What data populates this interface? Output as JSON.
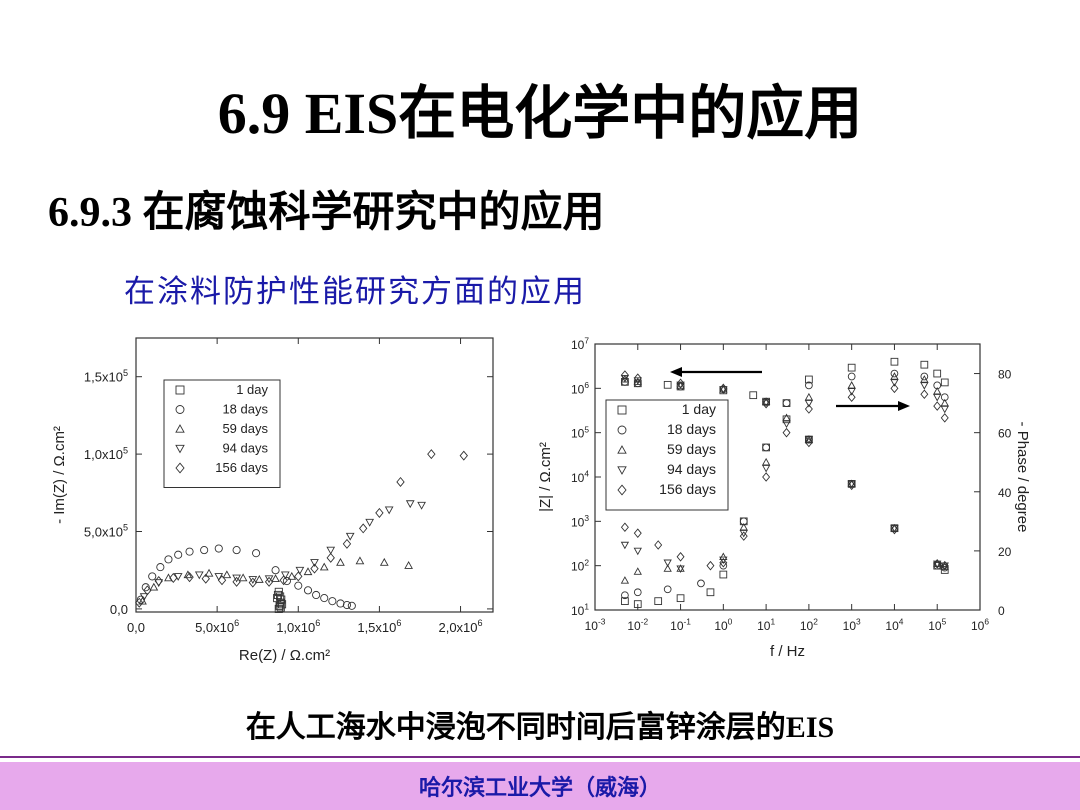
{
  "slide": {
    "title": "6.9   EIS在电化学中的应用",
    "subtitle": "6.9.3 在腐蚀科学研究中的应用",
    "section": "在涂料防护性能研究方面的应用",
    "caption": "在人工海水中浸泡不同时间后富锌涂层的EIS",
    "footer": "哈尔滨工业大学（威海）"
  },
  "chart_data": [
    {
      "type": "scatter",
      "title": "",
      "xlabel": "Re(Z)  /  Ω.cm²",
      "ylabel": "- Im(Z)  /  Ω.cm²",
      "xlim": [
        0,
        2200000
      ],
      "ylim": [
        -20000,
        1750000
      ],
      "x_ticks": [
        0,
        500000,
        1000000,
        1500000,
        2000000
      ],
      "x_tick_labels": [
        "0,0",
        "5,0x10",
        "1,0x10",
        "1,5x10",
        "2,0x10"
      ],
      "y_ticks": [
        0,
        500000,
        1000000,
        1500000
      ],
      "y_tick_labels": [
        "0,0",
        "5,0x10",
        "1,0x10",
        "1,5x10"
      ],
      "tick_exponent": "6",
      "y_tick_exponent": "5",
      "legend_position": "top-left",
      "series": [
        {
          "name": "1 day",
          "marker": "square",
          "points": [
            [
              880000,
              0
            ],
            [
              885000,
              20000
            ],
            [
              890000,
              40000
            ],
            [
              895000,
              60000
            ],
            [
              888000,
              80000
            ],
            [
              880000,
              110000
            ],
            [
              875000,
              90000
            ],
            [
              900000,
              30000
            ],
            [
              892000,
              10000
            ],
            [
              870000,
              70000
            ]
          ]
        },
        {
          "name": "18 days",
          "marker": "circle",
          "points": [
            [
              30000,
              60000
            ],
            [
              60000,
              140000
            ],
            [
              100000,
              210000
            ],
            [
              150000,
              270000
            ],
            [
              200000,
              320000
            ],
            [
              260000,
              350000
            ],
            [
              330000,
              370000
            ],
            [
              420000,
              380000
            ],
            [
              510000,
              390000
            ],
            [
              620000,
              380000
            ],
            [
              740000,
              360000
            ],
            [
              860000,
              250000
            ],
            [
              930000,
              180000
            ],
            [
              1000000,
              150000
            ],
            [
              1060000,
              120000
            ],
            [
              1110000,
              90000
            ],
            [
              1160000,
              70000
            ],
            [
              1210000,
              50000
            ],
            [
              1260000,
              35000
            ],
            [
              1300000,
              25000
            ],
            [
              1330000,
              20000
            ]
          ]
        },
        {
          "name": "59 days",
          "marker": "triangle-up",
          "points": [
            [
              40000,
              50000
            ],
            [
              110000,
              140000
            ],
            [
              200000,
              200000
            ],
            [
              320000,
              220000
            ],
            [
              450000,
              230000
            ],
            [
              560000,
              220000
            ],
            [
              660000,
              200000
            ],
            [
              760000,
              190000
            ],
            [
              860000,
              195000
            ],
            [
              960000,
              210000
            ],
            [
              1060000,
              240000
            ],
            [
              1160000,
              270000
            ],
            [
              1260000,
              300000
            ],
            [
              1380000,
              310000
            ],
            [
              1530000,
              300000
            ],
            [
              1680000,
              280000
            ]
          ]
        },
        {
          "name": "94 days",
          "marker": "triangle-down",
          "points": [
            [
              50000,
              80000
            ],
            [
              140000,
              170000
            ],
            [
              260000,
              210000
            ],
            [
              390000,
              220000
            ],
            [
              510000,
              210000
            ],
            [
              620000,
              200000
            ],
            [
              720000,
              190000
            ],
            [
              820000,
              195000
            ],
            [
              920000,
              220000
            ],
            [
              1010000,
              250000
            ],
            [
              1100000,
              300000
            ],
            [
              1200000,
              380000
            ],
            [
              1320000,
              470000
            ],
            [
              1440000,
              560000
            ],
            [
              1560000,
              640000
            ],
            [
              1690000,
              680000
            ],
            [
              1760000,
              670000
            ]
          ]
        },
        {
          "name": "156 days",
          "marker": "diamond",
          "points": [
            [
              20000,
              40000
            ],
            [
              70000,
              120000
            ],
            [
              140000,
              180000
            ],
            [
              230000,
              200000
            ],
            [
              330000,
              205000
            ],
            [
              430000,
              195000
            ],
            [
              530000,
              185000
            ],
            [
              620000,
              175000
            ],
            [
              720000,
              170000
            ],
            [
              820000,
              175000
            ],
            [
              910000,
              185000
            ],
            [
              1000000,
              210000
            ],
            [
              1100000,
              260000
            ],
            [
              1200000,
              330000
            ],
            [
              1300000,
              420000
            ],
            [
              1400000,
              520000
            ],
            [
              1500000,
              620000
            ],
            [
              1630000,
              820000
            ],
            [
              1820000,
              1000000
            ],
            [
              2020000,
              990000
            ]
          ]
        }
      ]
    },
    {
      "type": "scatter",
      "title": "",
      "xlabel": "f / Hz",
      "ylabel": "|Z|  /  Ω.cm²",
      "y2label": "- Phase / degree",
      "x_scale": "log",
      "y_scale": "log",
      "xlim": [
        0.001,
        1000000
      ],
      "ylim": [
        10,
        10000000
      ],
      "y2lim": [
        0,
        90
      ],
      "x_tick_labels": [
        "10",
        "10",
        "10",
        "10",
        "10",
        "10",
        "10",
        "10",
        "10",
        "10"
      ],
      "x_tick_exponents": [
        "-3",
        "-2",
        "-1",
        "0",
        "1",
        "2",
        "3",
        "4",
        "5",
        "6"
      ],
      "y_tick_labels": [
        "10",
        "10",
        "10",
        "10",
        "10",
        "10",
        "10"
      ],
      "y_tick_exponents": [
        "1",
        "2",
        "3",
        "4",
        "5",
        "6",
        "7"
      ],
      "y2_ticks": [
        0,
        20,
        40,
        60,
        80
      ],
      "legend_position": "middle-left",
      "arrows": [
        "left arrow points to |Z| curves",
        "right arrow points to phase curves"
      ],
      "series": [
        {
          "name": "1 day",
          "marker": "square",
          "modulus": [
            [
              0.005,
              1400000
            ],
            [
              0.01,
              1300000
            ],
            [
              0.05,
              1200000
            ],
            [
              0.1,
              1100000
            ],
            [
              1,
              900000
            ],
            [
              5,
              700000
            ],
            [
              10,
              500000
            ],
            [
              30,
              200000
            ],
            [
              100,
              70000
            ],
            [
              1000,
              7000
            ],
            [
              10000,
              700
            ],
            [
              100000,
              100
            ],
            [
              150000,
              80
            ]
          ],
          "phase": [
            [
              0.005,
              3
            ],
            [
              0.01,
              2
            ],
            [
              0.03,
              3
            ],
            [
              0.1,
              4
            ],
            [
              0.5,
              6
            ],
            [
              1,
              12
            ],
            [
              3,
              30
            ],
            [
              10,
              55
            ],
            [
              30,
              70
            ],
            [
              100,
              78
            ],
            [
              1000,
              82
            ],
            [
              10000,
              84
            ],
            [
              50000,
              83
            ],
            [
              100000,
              80
            ],
            [
              150000,
              77
            ]
          ]
        },
        {
          "name": "18 days",
          "marker": "circle",
          "modulus": [
            [
              0.005,
              1400000
            ],
            [
              0.01,
              1300000
            ],
            [
              0.1,
              1100000
            ],
            [
              1,
              950000
            ],
            [
              10,
              500000
            ],
            [
              100,
              70000
            ],
            [
              1000,
              7000
            ],
            [
              10000,
              700
            ],
            [
              100000,
              100
            ],
            [
              150000,
              90
            ]
          ],
          "phase": [
            [
              0.005,
              5
            ],
            [
              0.01,
              6
            ],
            [
              0.05,
              7
            ],
            [
              0.3,
              9
            ],
            [
              1,
              15
            ],
            [
              3,
              30
            ],
            [
              10,
              55
            ],
            [
              30,
              70
            ],
            [
              100,
              76
            ],
            [
              1000,
              79
            ],
            [
              10000,
              80
            ],
            [
              50000,
              79
            ],
            [
              100000,
              76
            ],
            [
              150000,
              72
            ]
          ]
        },
        {
          "name": "59 days",
          "marker": "triangle-up",
          "modulus": [
            [
              0.005,
              1600000
            ],
            [
              0.01,
              1400000
            ],
            [
              0.1,
              1150000
            ],
            [
              1,
              950000
            ],
            [
              10,
              500000
            ],
            [
              100,
              70000
            ],
            [
              1000,
              7000
            ],
            [
              10000,
              700
            ],
            [
              100000,
              110
            ],
            [
              150000,
              95
            ]
          ],
          "phase": [
            [
              0.005,
              10
            ],
            [
              0.01,
              13
            ],
            [
              0.05,
              14
            ],
            [
              0.1,
              14
            ],
            [
              1,
              18
            ],
            [
              3,
              28
            ],
            [
              10,
              50
            ],
            [
              30,
              65
            ],
            [
              100,
              72
            ],
            [
              1000,
              76
            ],
            [
              10000,
              79
            ],
            [
              50000,
              78
            ],
            [
              100000,
              74
            ],
            [
              150000,
              70
            ]
          ]
        },
        {
          "name": "94 days",
          "marker": "triangle-down",
          "modulus": [
            [
              0.005,
              1700000
            ],
            [
              0.01,
              1500000
            ],
            [
              0.1,
              1200000
            ],
            [
              1,
              950000
            ],
            [
              10,
              480000
            ],
            [
              100,
              70000
            ],
            [
              1000,
              7000
            ],
            [
              10000,
              700
            ],
            [
              100000,
              110
            ],
            [
              150000,
              100
            ]
          ],
          "phase": [
            [
              0.005,
              22
            ],
            [
              0.01,
              20
            ],
            [
              0.05,
              16
            ],
            [
              0.1,
              14
            ],
            [
              1,
              17
            ],
            [
              3,
              26
            ],
            [
              10,
              48
            ],
            [
              30,
              63
            ],
            [
              100,
              70
            ],
            [
              1000,
              74
            ],
            [
              10000,
              77
            ],
            [
              50000,
              76
            ],
            [
              100000,
              72
            ],
            [
              150000,
              68
            ]
          ]
        },
        {
          "name": "156 days",
          "marker": "diamond",
          "modulus": [
            [
              0.005,
              2000000
            ],
            [
              0.01,
              1700000
            ],
            [
              0.1,
              1300000
            ],
            [
              1,
              1000000
            ],
            [
              10,
              450000
            ],
            [
              100,
              60000
            ],
            [
              1000,
              6500
            ],
            [
              10000,
              650
            ],
            [
              100000,
              110
            ],
            [
              150000,
              100
            ]
          ],
          "phase": [
            [
              0.005,
              28
            ],
            [
              0.01,
              26
            ],
            [
              0.03,
              22
            ],
            [
              0.1,
              18
            ],
            [
              0.5,
              15
            ],
            [
              1,
              16
            ],
            [
              3,
              25
            ],
            [
              10,
              45
            ],
            [
              30,
              60
            ],
            [
              100,
              68
            ],
            [
              1000,
              72
            ],
            [
              10000,
              75
            ],
            [
              50000,
              73
            ],
            [
              100000,
              69
            ],
            [
              150000,
              65
            ]
          ]
        }
      ]
    }
  ]
}
